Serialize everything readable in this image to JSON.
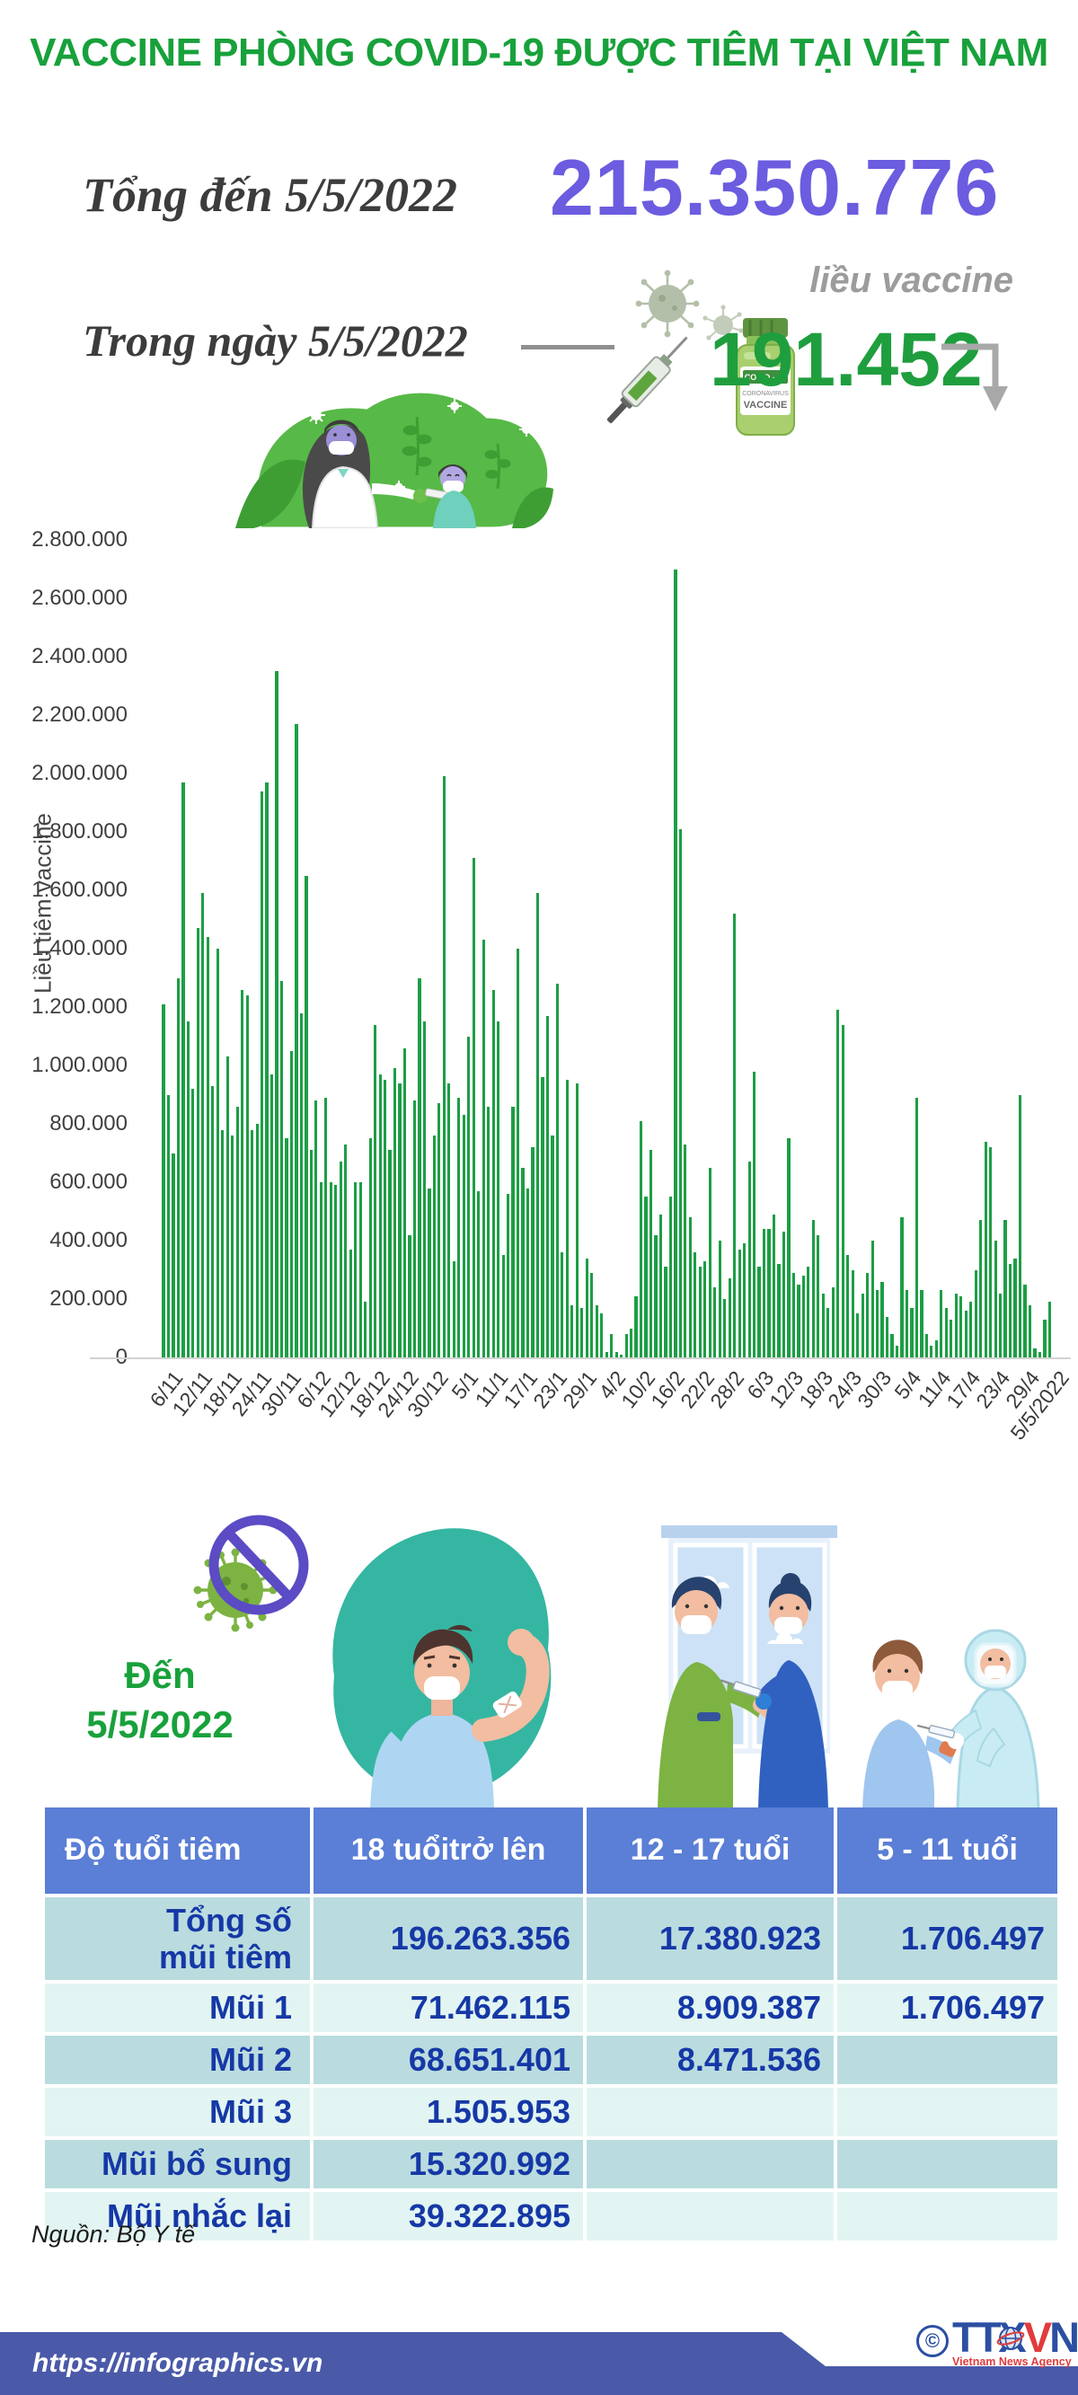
{
  "title": "VACCINE PHÒNG COVID-19 ĐƯỢC TIÊM TẠI VIỆT NAM",
  "summary": {
    "total_label": "Tổng đến 5/5/2022",
    "total_value": "215.350.776",
    "total_unit": "liều vaccine",
    "daily_label": "Trong ngày 5/5/2022",
    "daily_value": "191.452"
  },
  "chart_data": {
    "type": "bar",
    "title": "",
    "xlabel": "",
    "ylabel": "Liều tiêm vaccine",
    "ylim": [
      0,
      2800000
    ],
    "ytick_step": 200000,
    "grid": false,
    "legend": "none",
    "bar_color": "#1d9e45",
    "xtick_every": 6,
    "xtick_labels": [
      "6/11",
      "12/11",
      "18/11",
      "24/11",
      "30/11",
      "6/12",
      "12/12",
      "18/12",
      "24/12",
      "30/12",
      "5/1",
      "11/1",
      "17/1",
      "23/1",
      "29/1",
      "4/2",
      "10/2",
      "16/2",
      "22/2",
      "28/2",
      "6/3",
      "12/3",
      "18/3",
      "24/3",
      "30/3",
      "5/4",
      "11/4",
      "17/4",
      "23/4",
      "29/4",
      "5/5/2022"
    ],
    "values": [
      1210000,
      900000,
      700000,
      1300000,
      1970000,
      1150000,
      920000,
      1470000,
      1590000,
      1440000,
      930000,
      1400000,
      780000,
      1030000,
      760000,
      860000,
      1260000,
      1240000,
      780000,
      800000,
      1940000,
      1970000,
      970000,
      2350000,
      1290000,
      750000,
      1050000,
      2170000,
      1180000,
      1650000,
      710000,
      880000,
      600000,
      890000,
      600000,
      590000,
      670000,
      730000,
      370000,
      600000,
      600000,
      190000,
      750000,
      1140000,
      970000,
      950000,
      710000,
      990000,
      940000,
      1060000,
      420000,
      880000,
      1300000,
      1150000,
      580000,
      760000,
      870000,
      1990000,
      940000,
      330000,
      890000,
      830000,
      1100000,
      1710000,
      570000,
      1430000,
      860000,
      1260000,
      1150000,
      350000,
      560000,
      860000,
      1400000,
      650000,
      580000,
      720000,
      1590000,
      960000,
      1170000,
      760000,
      1280000,
      360000,
      950000,
      180000,
      940000,
      170000,
      340000,
      290000,
      180000,
      150000,
      20000,
      80000,
      20000,
      10000,
      80000,
      100000,
      210000,
      810000,
      550000,
      710000,
      420000,
      490000,
      310000,
      550000,
      2700000,
      1810000,
      730000,
      480000,
      360000,
      310000,
      330000,
      650000,
      240000,
      400000,
      200000,
      270000,
      1520000,
      370000,
      390000,
      670000,
      980000,
      310000,
      440000,
      440000,
      490000,
      320000,
      430000,
      750000,
      290000,
      250000,
      280000,
      310000,
      470000,
      420000,
      220000,
      170000,
      240000,
      1190000,
      1140000,
      350000,
      300000,
      150000,
      220000,
      290000,
      400000,
      230000,
      260000,
      140000,
      80000,
      40000,
      480000,
      230000,
      170000,
      890000,
      230000,
      80000,
      40000,
      60000,
      230000,
      170000,
      130000,
      220000,
      210000,
      160000,
      190000,
      300000,
      470000,
      740000,
      720000,
      400000,
      220000,
      470000,
      320000,
      340000,
      900000,
      250000,
      180000,
      30000,
      20000,
      130000,
      191452
    ]
  },
  "age_section": {
    "caption_line1": "Đến",
    "caption_line2": "5/5/2022"
  },
  "table": {
    "headers": [
      [
        "Độ tuổi tiêm"
      ],
      [
        "18 tuổi",
        "trở lên"
      ],
      [
        "12 - 17 tuổi"
      ],
      [
        "5 - 11 tuổi"
      ]
    ],
    "rows": [
      {
        "label": [
          "Tổng số",
          "mũi tiêm"
        ],
        "values": [
          "196.263.356",
          "17.380.923",
          "1.706.497"
        ]
      },
      {
        "label": [
          "Mũi 1"
        ],
        "values": [
          "71.462.115",
          "8.909.387",
          "1.706.497"
        ]
      },
      {
        "label": [
          "Mũi 2"
        ],
        "values": [
          "68.651.401",
          "8.471.536",
          ""
        ]
      },
      {
        "label": [
          "Mũi 3"
        ],
        "values": [
          "1.505.953",
          "",
          ""
        ]
      },
      {
        "label": [
          "Mũi bổ sung"
        ],
        "values": [
          "15.320.992",
          "",
          ""
        ]
      },
      {
        "label": [
          "Mũi nhắc lại"
        ],
        "values": [
          "39.322.895",
          "",
          ""
        ]
      }
    ]
  },
  "footer": {
    "source": "Nguồn: Bộ Y tế",
    "url": "https://infographics.vn",
    "copyright": "©",
    "agency_letters_blue1": "TTX",
    "agency_letters_red": "V",
    "agency_letters_blue2": "N",
    "agency_sub": "Vietnam News Agency"
  },
  "colors": {
    "title_green": "#18a13b",
    "total_purple": "#6b5ce0",
    "daily_green": "#1f9e3e",
    "bar_green": "#1d9e45",
    "table_header_blue": "#5b7ed6",
    "table_row_teal": "#badcdf",
    "table_row_pale": "#e2f5f3",
    "table_text_blue": "#1638a6",
    "footer_blue": "#4a5aa8",
    "agency_blue": "#2b4fa2",
    "agency_red": "#e23b3c"
  }
}
